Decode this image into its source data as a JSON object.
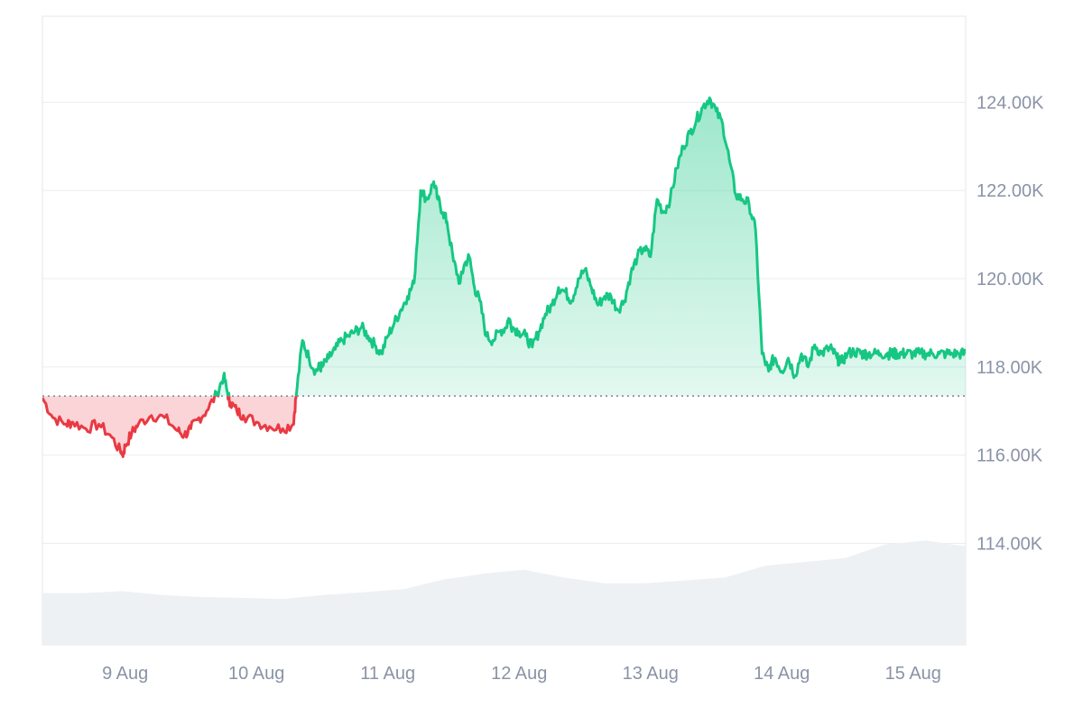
{
  "chart_data": {
    "type": "area",
    "baseline": 117340,
    "ylim": [
      111700,
      125950
    ],
    "y_ticks": [
      {
        "value": 114000,
        "label": "114.00K"
      },
      {
        "value": 116000,
        "label": "116.00K"
      },
      {
        "value": 118000,
        "label": "118.00K"
      },
      {
        "value": 120000,
        "label": "120.00K"
      },
      {
        "value": 122000,
        "label": "122.00K"
      },
      {
        "value": 124000,
        "label": "124.00K"
      }
    ],
    "x_range": [
      8.37,
      15.4
    ],
    "x_ticks": [
      {
        "value": 9,
        "label": "9 Aug"
      },
      {
        "value": 10,
        "label": "10 Aug"
      },
      {
        "value": 11,
        "label": "11 Aug"
      },
      {
        "value": 12,
        "label": "12 Aug"
      },
      {
        "value": 13,
        "label": "13 Aug"
      },
      {
        "value": 14,
        "label": "14 Aug"
      },
      {
        "value": 15,
        "label": "15 Aug"
      }
    ],
    "series": [
      {
        "x": [
          8.37,
          8.45,
          8.55,
          8.6,
          8.7,
          8.8,
          8.9,
          8.98,
          9.0,
          9.05,
          9.1,
          9.2,
          9.3,
          9.4,
          9.45,
          9.5,
          9.55,
          9.62,
          9.7,
          9.75,
          9.78,
          9.8,
          9.85,
          9.9,
          10.0,
          10.1,
          10.2,
          10.28,
          10.3,
          10.35,
          10.4,
          10.45,
          10.48,
          10.5,
          10.55,
          10.6,
          10.65,
          10.7,
          10.75,
          10.8,
          10.85,
          10.9,
          10.95,
          11.0,
          11.05,
          11.1,
          11.15,
          11.2,
          11.25,
          11.3,
          11.35,
          11.38,
          11.42,
          11.45,
          11.5,
          11.55,
          11.58,
          11.62,
          11.66,
          11.7,
          11.75,
          11.8,
          11.85,
          11.9,
          11.92,
          11.95,
          12.0,
          12.05,
          12.1,
          12.15,
          12.2,
          12.25,
          12.3,
          12.35,
          12.4,
          12.45,
          12.5,
          12.55,
          12.6,
          12.65,
          12.7,
          12.75,
          12.8,
          12.85,
          12.9,
          12.95,
          13.0,
          13.05,
          13.1,
          13.15,
          13.2,
          13.25,
          13.3,
          13.35,
          13.4,
          13.45,
          13.5,
          13.55,
          13.6,
          13.65,
          13.7,
          13.75,
          13.8,
          13.85,
          13.9,
          13.92,
          13.95,
          14.0,
          14.05,
          14.1,
          14.15,
          14.2,
          14.25,
          14.3,
          14.35,
          14.38,
          14.42,
          14.45,
          14.5,
          14.55,
          14.6,
          14.62,
          14.65,
          14.7,
          14.75,
          14.8,
          14.83,
          14.85,
          14.88,
          14.92,
          14.95,
          15.0,
          15.05,
          15.1,
          15.15,
          15.2,
          15.25,
          15.3,
          15.35,
          15.4
        ],
        "values": [
          117300,
          116850,
          116700,
          116750,
          116600,
          116700,
          116400,
          116000,
          116200,
          116500,
          116700,
          116900,
          116850,
          116550,
          116450,
          116600,
          116800,
          117000,
          117400,
          117800,
          117400,
          117200,
          117000,
          116900,
          116750,
          116650,
          116600,
          116700,
          117300,
          118600,
          118200,
          117900,
          118000,
          118000,
          118200,
          118400,
          118600,
          118700,
          118800,
          118900,
          118700,
          118500,
          118300,
          118700,
          119000,
          119300,
          119600,
          119900,
          122000,
          121800,
          122200,
          121800,
          121500,
          121300,
          120400,
          119900,
          120300,
          120500,
          119800,
          119500,
          118700,
          118600,
          118800,
          118900,
          119100,
          118900,
          118800,
          118700,
          118450,
          118800,
          119200,
          119400,
          119800,
          119700,
          119500,
          120000,
          120200,
          119800,
          119400,
          119600,
          119600,
          119300,
          119500,
          120100,
          120500,
          120700,
          120500,
          121800,
          121500,
          121800,
          122500,
          123000,
          123300,
          123600,
          123900,
          124100,
          123800,
          123500,
          122700,
          121900,
          121800,
          121700,
          121100,
          118300,
          117900,
          118100,
          118200,
          117900,
          118200,
          117800,
          118300,
          118000,
          118500,
          118300,
          118400,
          118400,
          118200,
          118100,
          118300,
          118350,
          118300,
          118300,
          118300,
          118300,
          118300,
          118300,
          118300,
          118300,
          118300,
          118300,
          118300,
          118300,
          118300,
          118300,
          118300,
          118300,
          118300,
          118300,
          118300,
          118300
        ]
      }
    ]
  },
  "colors": {
    "up": "#16c784",
    "down": "#ea3943",
    "up_fill_top": "#16c784",
    "down_fill": "#ea3943",
    "volume": "#eef1f4",
    "grid": "#e9edf2",
    "baseline": "#7a8394"
  },
  "volume_profile": [
    0.42,
    0.42,
    0.44,
    0.4,
    0.38,
    0.37,
    0.36,
    0.4,
    0.43,
    0.46,
    0.56,
    0.62,
    0.66,
    0.58,
    0.52,
    0.52,
    0.55,
    0.58,
    0.7,
    0.74,
    0.78,
    0.92,
    0.96,
    0.9
  ]
}
